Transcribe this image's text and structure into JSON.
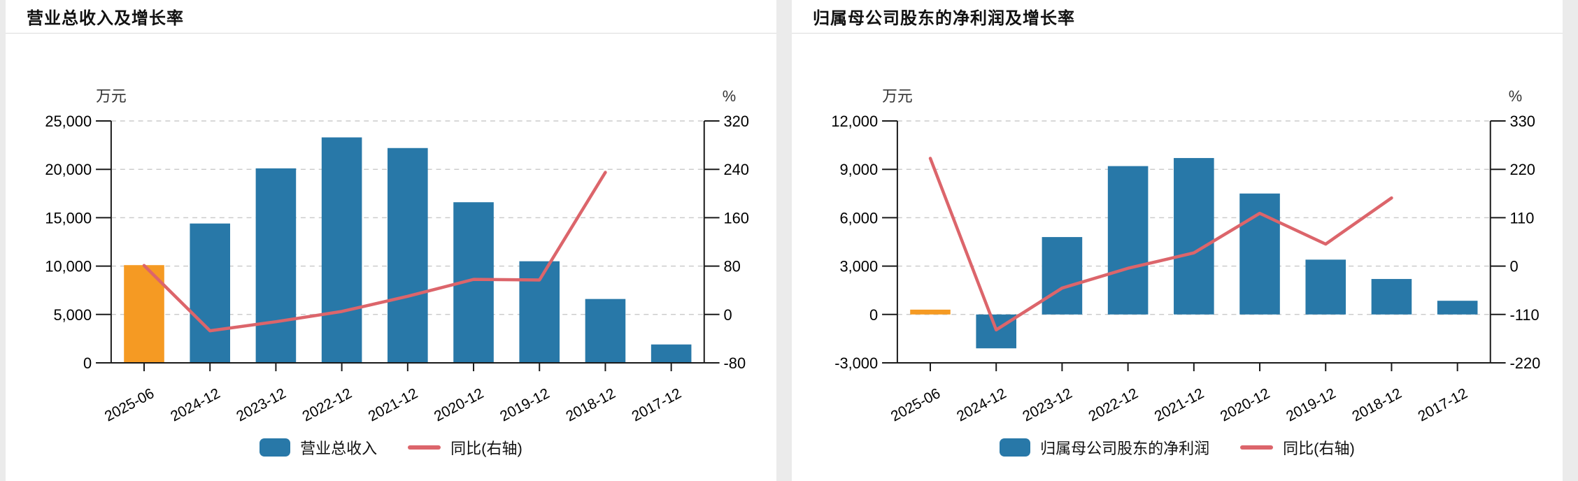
{
  "colors": {
    "bar_blue": "#2878a8",
    "bar_highlight_orange": "#f59a23",
    "line_red": "#dc656b",
    "axis": "#1a1a1a",
    "grid": "#cccccc",
    "tick_text": "#000000",
    "unit_text": "#333333",
    "panel_divider": "#dcdcdc",
    "page_background": "#ebebeb",
    "panel_background": "#ffffff"
  },
  "chart_data": [
    {
      "type": "bar",
      "title": "营业总收入及增长率",
      "unit_left": "万元",
      "unit_right": "%",
      "categories": [
        "2025-06",
        "2024-12",
        "2023-12",
        "2022-12",
        "2021-12",
        "2020-12",
        "2019-12",
        "2018-12",
        "2017-12"
      ],
      "series": [
        {
          "name": "营业总收入",
          "type": "bar",
          "axis": "left",
          "values": [
            10100,
            14400,
            20100,
            23300,
            22200,
            16600,
            10500,
            6600,
            1900
          ]
        },
        {
          "name": "同比(右轴)",
          "type": "line",
          "axis": "right",
          "values": [
            81,
            -27,
            -12,
            5,
            30,
            58,
            57,
            235,
            null
          ]
        }
      ],
      "left_axis": {
        "min": 0,
        "max": 25000,
        "ticks": [
          0,
          5000,
          10000,
          15000,
          20000,
          25000
        ]
      },
      "right_axis": {
        "min": -80,
        "max": 320,
        "ticks": [
          -80,
          0,
          80,
          160,
          240,
          320
        ]
      },
      "legend": [
        "营业总收入",
        "同比(右轴)"
      ],
      "grid": true,
      "legend_position": "bottom"
    },
    {
      "type": "bar",
      "title": "归属母公司股东的净利润及增长率",
      "unit_left": "万元",
      "unit_right": "%",
      "categories": [
        "2025-06",
        "2024-12",
        "2023-12",
        "2022-12",
        "2021-12",
        "2020-12",
        "2019-12",
        "2018-12",
        "2017-12"
      ],
      "series": [
        {
          "name": "归属母公司股东的净利润",
          "type": "bar",
          "axis": "left",
          "values": [
            300,
            -2100,
            4800,
            9200,
            9700,
            7500,
            3400,
            2200,
            850
          ]
        },
        {
          "name": "同比(右轴)",
          "type": "line",
          "axis": "right",
          "values": [
            245,
            -145,
            -50,
            -5,
            30,
            120,
            50,
            155,
            null
          ]
        }
      ],
      "left_axis": {
        "min": -3000,
        "max": 12000,
        "ticks": [
          -3000,
          0,
          3000,
          6000,
          9000,
          12000
        ]
      },
      "right_axis": {
        "min": -220,
        "max": 330,
        "ticks": [
          -220,
          -110,
          0,
          110,
          220,
          330
        ]
      },
      "legend": [
        "归属母公司股东的净利润",
        "同比(右轴)"
      ],
      "grid": true,
      "legend_position": "bottom"
    }
  ]
}
